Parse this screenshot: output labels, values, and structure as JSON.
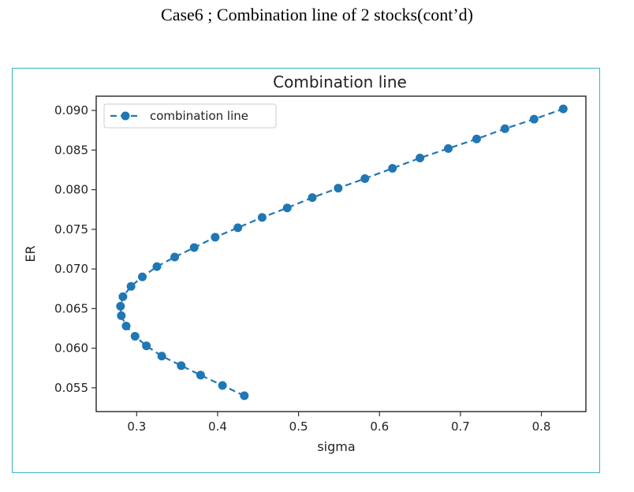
{
  "page": {
    "title": "Case6 ; Combination line of 2 stocks(cont’d)"
  },
  "colors": {
    "series": "#1f77b4",
    "frame": "#3bb3c2",
    "axes": "#333333"
  },
  "chart_data": {
    "type": "line",
    "title": "Combination line",
    "xlabel": "sigma",
    "ylabel": "ER",
    "xlim": [
      0.25,
      0.855
    ],
    "ylim": [
      0.052,
      0.0918
    ],
    "xticks": [
      0.3,
      0.4,
      0.5,
      0.6,
      0.7,
      0.8
    ],
    "xtick_labels": [
      "0.3",
      "0.4",
      "0.5",
      "0.6",
      "0.7",
      "0.8"
    ],
    "yticks": [
      0.055,
      0.06,
      0.065,
      0.07,
      0.075,
      0.08,
      0.085,
      0.09
    ],
    "ytick_labels": [
      "0.055",
      "0.060",
      "0.065",
      "0.070",
      "0.075",
      "0.080",
      "0.085",
      "0.090"
    ],
    "grid": false,
    "legend_position": "top-left",
    "series": [
      {
        "name": "combination line",
        "line_style": "dashed",
        "marker": "circle",
        "x": [
          0.433,
          0.406,
          0.379,
          0.355,
          0.331,
          0.312,
          0.298,
          0.287,
          0.281,
          0.28,
          0.283,
          0.293,
          0.307,
          0.325,
          0.347,
          0.371,
          0.397,
          0.425,
          0.455,
          0.486,
          0.517,
          0.549,
          0.582,
          0.616,
          0.65,
          0.685,
          0.72,
          0.755,
          0.791,
          0.827
        ],
        "y": [
          0.054,
          0.0553,
          0.0566,
          0.0578,
          0.059,
          0.0603,
          0.0615,
          0.0628,
          0.0641,
          0.0653,
          0.0665,
          0.0678,
          0.069,
          0.0703,
          0.0715,
          0.0727,
          0.074,
          0.0752,
          0.0765,
          0.0777,
          0.079,
          0.0802,
          0.0814,
          0.0827,
          0.084,
          0.0852,
          0.0864,
          0.0877,
          0.0889,
          0.0902
        ]
      }
    ]
  }
}
